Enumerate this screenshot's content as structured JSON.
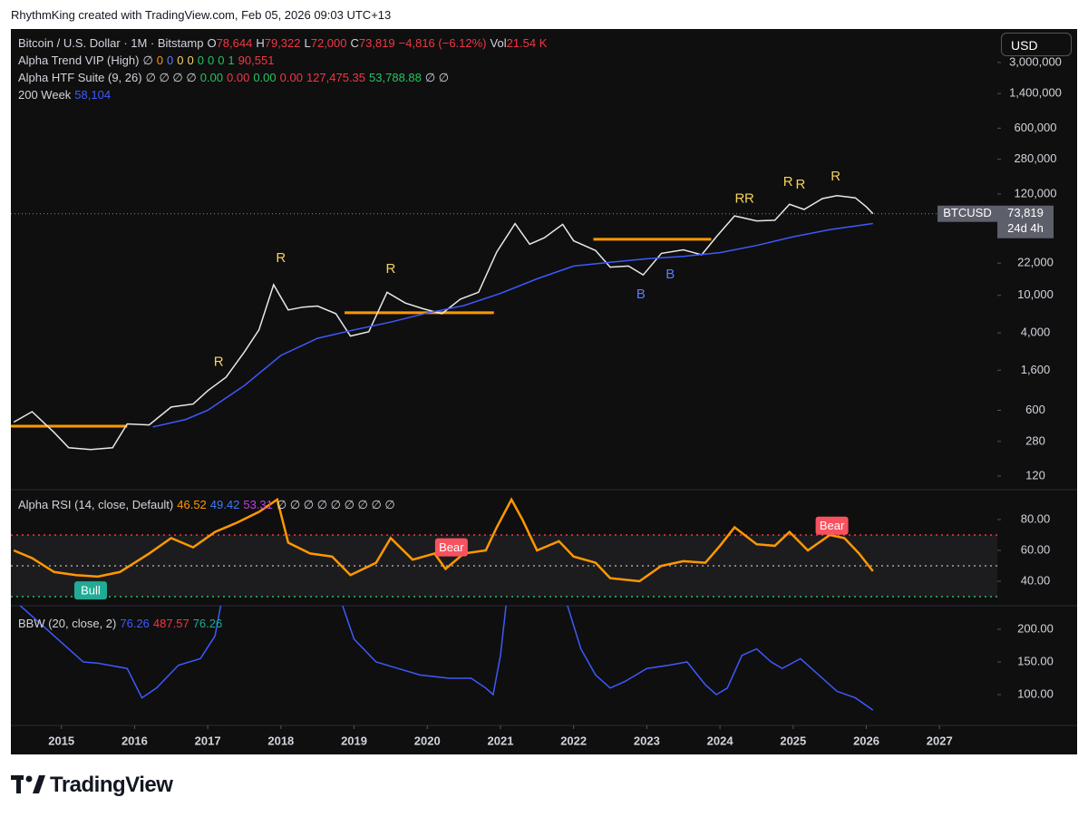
{
  "header": {
    "credit": "RhythmKing created with TradingView.com, Feb 05, 2026 09:03 UTC+13"
  },
  "currency_button": "USD",
  "footer": {
    "brand": "TradingView"
  },
  "legend": {
    "ohlc": [
      {
        "key": "O",
        "value": "78,644"
      },
      {
        "key": "H",
        "value": "79,322"
      },
      {
        "key": "L",
        "value": "72,000"
      },
      {
        "key": "C",
        "value": "73,819"
      }
    ],
    "change": "−4,816 (−6.12%)",
    "vol_key": "Vol",
    "vol": "21.54 K",
    "indicators": [
      {
        "name": "Alpha Trend VIP (High)",
        "values": [
          {
            "text": "∅",
            "color": "#d1d4dc"
          },
          {
            "text": "0",
            "color": "#ff9800"
          },
          {
            "text": "0",
            "color": "#5b7cfa"
          },
          {
            "text": "0",
            "color": "#f5d35b"
          },
          {
            "text": "0",
            "color": "#f5d35b"
          },
          {
            "text": "0",
            "color": "#22c55e"
          },
          {
            "text": "0",
            "color": "#22c55e"
          },
          {
            "text": "0",
            "color": "#22c55e"
          },
          {
            "text": "1",
            "color": "#22c55e"
          },
          {
            "text": "90,551",
            "color": "#f23645"
          }
        ]
      },
      {
        "name": "Alpha HTF Suite (9, 26)",
        "values": [
          {
            "text": "∅ ∅ ∅ ∅",
            "color": "#d1d4dc"
          },
          {
            "text": "0.00",
            "color": "#22c55e"
          },
          {
            "text": "0.00",
            "color": "#f23645"
          },
          {
            "text": "0.00",
            "color": "#22c55e"
          },
          {
            "text": "0.00",
            "color": "#f23645"
          },
          {
            "text": "127,475.35",
            "color": "#f23645"
          },
          {
            "text": "53,788.88",
            "color": "#22c55e"
          },
          {
            "text": "∅ ∅",
            "color": "#d1d4dc"
          }
        ]
      },
      {
        "name": "200 Week",
        "values": [
          {
            "text": "58,104",
            "color": "#3d5afe"
          }
        ]
      }
    ]
  },
  "chart_data": [
    {
      "type": "line",
      "title": "Bitcoin / U.S. Dollar · 1M · Bitstamp",
      "yscale": "log",
      "ylim": [
        86,
        6800000
      ],
      "xlim": [
        2014.31,
        2027.79
      ],
      "xticks": [
        2015,
        2016,
        2017,
        2018,
        2019,
        2020,
        2021,
        2022,
        2023,
        2024,
        2025,
        2026,
        2027
      ],
      "yticks": [
        {
          "value": 3000000,
          "label": "3,000,000"
        },
        {
          "value": 1400000,
          "label": "1,400,000"
        },
        {
          "value": 600000,
          "label": "600,000"
        },
        {
          "value": 280000,
          "label": "280,000"
        },
        {
          "value": 120000,
          "label": "120,000"
        },
        {
          "value": 22000,
          "label": "22,000"
        },
        {
          "value": 10000,
          "label": "10,000"
        },
        {
          "value": 4000,
          "label": "4,000"
        },
        {
          "value": 1600,
          "label": "1,600"
        },
        600,
        280,
        120
      ],
      "last_value_label": "73,819",
      "countdown": "24d 4h",
      "series": [
        {
          "name": "BTCUSD",
          "color": "#e8e8e8",
          "x": [
            2014.35,
            2014.6,
            2014.9,
            2015.1,
            2015.4,
            2015.7,
            2015.9,
            2016.2,
            2016.5,
            2016.8,
            2017.0,
            2017.25,
            2017.5,
            2017.7,
            2017.9,
            2018.1,
            2018.3,
            2018.5,
            2018.75,
            2018.95,
            2019.2,
            2019.45,
            2019.7,
            2019.95,
            2020.2,
            2020.45,
            2020.7,
            2020.95,
            2021.2,
            2021.4,
            2021.6,
            2021.85,
            2022.0,
            2022.3,
            2022.5,
            2022.75,
            2022.95,
            2023.2,
            2023.5,
            2023.75,
            2023.95,
            2024.2,
            2024.5,
            2024.75,
            2024.95,
            2025.15,
            2025.4,
            2025.6,
            2025.85,
            2026.0,
            2026.09
          ],
          "values": [
            450,
            580,
            350,
            240,
            230,
            240,
            430,
            420,
            650,
            700,
            970,
            1350,
            2500,
            4300,
            13000,
            7000,
            7500,
            7700,
            6400,
            3700,
            4100,
            10800,
            8300,
            7200,
            6400,
            9100,
            10800,
            29000,
            58000,
            35000,
            41000,
            57000,
            38000,
            30000,
            20000,
            20500,
            16500,
            28000,
            30500,
            27000,
            42000,
            70000,
            62000,
            63000,
            93000,
            82000,
            107000,
            115000,
            109000,
            87500,
            73819
          ]
        },
        {
          "name": "200 Week",
          "color": "#3d5afe",
          "x": [
            2016.25,
            2016.7,
            2017.0,
            2017.5,
            2018.0,
            2018.5,
            2019.0,
            2019.5,
            2020.0,
            2020.5,
            2021.0,
            2021.5,
            2022.0,
            2022.5,
            2023.0,
            2023.5,
            2024.0,
            2024.5,
            2025.0,
            2025.5,
            2026.09
          ],
          "values": [
            400,
            480,
            600,
            1100,
            2300,
            3500,
            4300,
            5200,
            6500,
            7800,
            10500,
            15000,
            20500,
            22500,
            24500,
            26000,
            28500,
            34000,
            42000,
            50000,
            58104
          ]
        }
      ],
      "levels": [
        {
          "from": 2014.31,
          "to": 2015.9,
          "value": 407,
          "color": "#ff9800"
        },
        {
          "from": 2018.87,
          "to": 2020.91,
          "value": 6550,
          "color": "#ff9800"
        },
        {
          "from": 2022.27,
          "to": 2023.88,
          "value": 39500,
          "color": "#ff9800"
        }
      ],
      "annotations": [
        {
          "text": "R",
          "x": 2017.15,
          "y": 1950,
          "color": "#f5d35b"
        },
        {
          "text": "R",
          "x": 2018.0,
          "y": 24800,
          "color": "#f5d35b"
        },
        {
          "text": "R",
          "x": 2019.5,
          "y": 19000,
          "color": "#f5d35b"
        },
        {
          "text": "R",
          "x": 2024.27,
          "y": 106000,
          "color": "#f5d35b"
        },
        {
          "text": "R",
          "x": 2024.4,
          "y": 106000,
          "color": "#f5d35b"
        },
        {
          "text": "R",
          "x": 2024.93,
          "y": 160000,
          "color": "#f5d35b"
        },
        {
          "text": "R",
          "x": 2025.1,
          "y": 150000,
          "color": "#f5d35b"
        },
        {
          "text": "R",
          "x": 2025.58,
          "y": 183000,
          "color": "#f5d35b"
        },
        {
          "text": "B",
          "x": 2022.92,
          "y": 10200,
          "color": "#5b7cfa"
        },
        {
          "text": "B",
          "x": 2023.32,
          "y": 16600,
          "color": "#5b7cfa"
        }
      ]
    },
    {
      "type": "line",
      "title": "Alpha RSI (14, close, Default)",
      "legend_values": [
        {
          "text": "46.52",
          "color": "#ff9800"
        },
        {
          "text": "49.42",
          "color": "#3d7bfa"
        },
        {
          "text": "53.31",
          "color": "#c040e0"
        },
        {
          "text": "∅ ∅ ∅ ∅ ∅ ∅ ∅ ∅ ∅",
          "color": "#d1d4dc"
        }
      ],
      "ylim": [
        24.1,
        99.4
      ],
      "yticks": [
        {
          "value": 80,
          "label": "80.00"
        },
        {
          "value": 60,
          "label": "60.00"
        },
        {
          "value": 40,
          "label": "40.00"
        }
      ],
      "bands": [
        {
          "value": 70,
          "color": "#f23645"
        },
        {
          "value": 50,
          "color": "#9e9e9e"
        },
        {
          "value": 30,
          "color": "#22c55e"
        }
      ],
      "series": [
        {
          "color": "#ff9800",
          "x": [
            2014.35,
            2014.6,
            2014.9,
            2015.2,
            2015.5,
            2015.8,
            2016.2,
            2016.5,
            2016.8,
            2017.1,
            2017.4,
            2017.7,
            2017.95,
            2018.1,
            2018.4,
            2018.7,
            2018.95,
            2019.3,
            2019.5,
            2019.8,
            2020.1,
            2020.25,
            2020.5,
            2020.8,
            2020.95,
            2021.15,
            2021.3,
            2021.5,
            2021.8,
            2022.0,
            2022.3,
            2022.5,
            2022.9,
            2023.2,
            2023.5,
            2023.8,
            2024.0,
            2024.2,
            2024.5,
            2024.75,
            2024.95,
            2025.2,
            2025.5,
            2025.7,
            2025.9,
            2026.09
          ],
          "values": [
            60,
            55,
            46,
            44,
            43,
            46,
            58,
            68,
            62,
            72,
            78,
            85,
            93,
            65,
            58,
            56,
            44,
            52,
            68,
            54,
            58,
            48,
            58,
            60,
            75,
            93,
            80,
            60,
            66,
            56,
            52,
            42,
            40,
            50,
            53,
            52,
            63,
            75,
            64,
            63,
            72,
            60,
            70,
            68,
            58,
            46.52
          ]
        }
      ],
      "annotations": [
        {
          "text": "Bull",
          "x": 2015.4,
          "y": 34,
          "color": "#22ab94",
          "box": true
        },
        {
          "text": "Bear",
          "x": 2020.33,
          "y": 62,
          "color": "#f7525f",
          "box": true
        },
        {
          "text": "Bear",
          "x": 2025.53,
          "y": 76,
          "color": "#f7525f",
          "box": true
        }
      ]
    },
    {
      "type": "line",
      "title": "BBW (20, close, 2)",
      "legend_values": [
        {
          "text": "76.26",
          "color": "#3d5afe"
        },
        {
          "text": "487.57",
          "color": "#f23645"
        },
        {
          "text": "76.26",
          "color": "#22ab94"
        }
      ],
      "ylim": [
        52.8,
        236.1
      ],
      "yticks": [
        {
          "value": 200,
          "label": "200.00"
        },
        {
          "value": 150,
          "label": "150.00"
        },
        {
          "value": 100,
          "label": "100.00"
        }
      ],
      "series": [
        {
          "color": "#3d5afe",
          "x": [
            2014.3,
            2014.9,
            2015.3,
            2015.5,
            2015.9,
            2016.1,
            2016.3,
            2016.6,
            2016.9,
            2017.1,
            2017.2,
            2018.8,
            2019.0,
            2019.3,
            2019.6,
            2019.9,
            2020.3,
            2020.6,
            2020.8,
            2020.9,
            2021.0,
            2021.1,
            2021.85,
            2022.1,
            2022.3,
            2022.5,
            2022.7,
            2023.0,
            2023.3,
            2023.55,
            2023.8,
            2023.95,
            2024.1,
            2024.3,
            2024.5,
            2024.7,
            2024.85,
            2025.1,
            2025.4,
            2025.6,
            2025.85,
            2026.09
          ],
          "values": [
            250,
            190,
            150,
            148,
            140,
            95,
            110,
            145,
            155,
            190,
            250,
            250,
            185,
            150,
            140,
            130,
            125,
            125,
            110,
            100,
            160,
            260,
            260,
            170,
            130,
            110,
            120,
            140,
            145,
            150,
            115,
            100,
            110,
            160,
            170,
            150,
            140,
            155,
            125,
            105,
            95,
            76.26
          ]
        }
      ]
    }
  ]
}
